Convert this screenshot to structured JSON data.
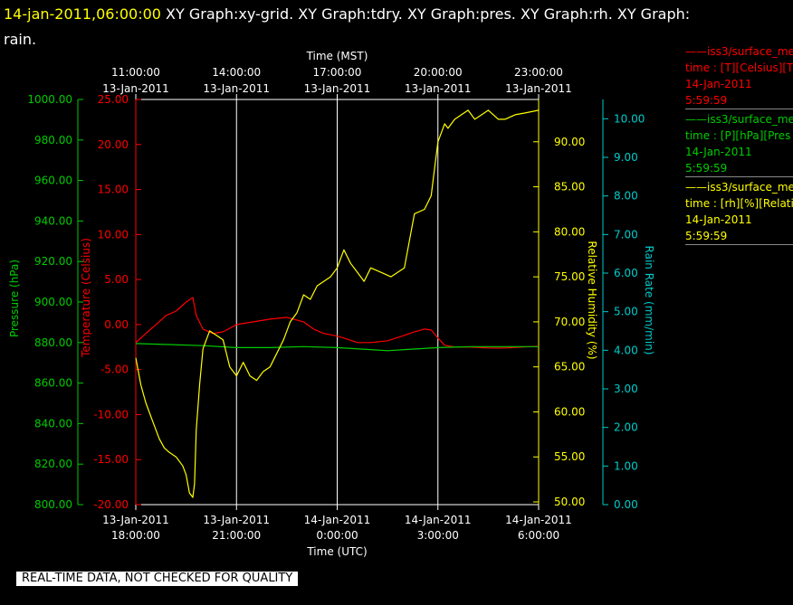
{
  "header": {
    "timestamp": "14-jan-2011,06:00:00",
    "title_rest": " XY Graph:xy-grid.  XY Graph:tdry.  XY Graph:pres.  XY Graph:rh.  XY Graph:",
    "title_wrap": "rain."
  },
  "colors": {
    "temperature": "#ff0000",
    "pressure": "#00cc00",
    "humidity": "#ffff00",
    "rain": "#00cccc",
    "grid": "#ffffff",
    "background": "#000000"
  },
  "legend": [
    {
      "line1": "——iss3/surface_me",
      "line2": "time : [T][Celsius][T",
      "line3": "14-Jan-2011",
      "line4": "5:59:59",
      "color": "#ff0000"
    },
    {
      "line1": "——iss3/surface_me",
      "line2": "time : [P][hPa][Pres",
      "line3": "14-Jan-2011",
      "line4": "5:59:59",
      "color": "#00cc00"
    },
    {
      "line1": "——iss3/surface_me",
      "line2": "time : [rh][%][Relati",
      "line3": "14-Jan-2011",
      "line4": "5:59:59",
      "color": "#ffff00"
    }
  ],
  "banner": "REAL-TIME DATA, NOT CHECKED FOR QUALITY",
  "chart_data": {
    "type": "line",
    "x_unit": "hours since 13-Jan-2011 18:00 UTC",
    "xlim": [
      0,
      12
    ],
    "top_axis": {
      "label": "Time (MST)",
      "ticks": [
        {
          "x": 0,
          "l1": "11:00:00",
          "l2": "13-Jan-2011"
        },
        {
          "x": 3,
          "l1": "14:00:00",
          "l2": "13-Jan-2011"
        },
        {
          "x": 6,
          "l1": "17:00:00",
          "l2": "13-Jan-2011"
        },
        {
          "x": 9,
          "l1": "20:00:00",
          "l2": "13-Jan-2011"
        },
        {
          "x": 12,
          "l1": "23:00:00",
          "l2": "13-Jan-2011"
        }
      ]
    },
    "bottom_axis": {
      "label": "Time (UTC)",
      "ticks": [
        {
          "x": 0,
          "l1": "13-Jan-2011",
          "l2": "18:00:00"
        },
        {
          "x": 3,
          "l1": "13-Jan-2011",
          "l2": "21:00:00"
        },
        {
          "x": 6,
          "l1": "14-Jan-2011",
          "l2": "0:00:00"
        },
        {
          "x": 9,
          "l1": "14-Jan-2011",
          "l2": "3:00:00"
        },
        {
          "x": 12,
          "l1": "14-Jan-2011",
          "l2": "6:00:00"
        }
      ]
    },
    "grid_x": [
      3,
      6,
      9
    ],
    "y_axes": {
      "pressure": {
        "label": "Pressure (hPa)",
        "ylim": [
          800,
          1000
        ],
        "ticks": [
          "800.00",
          "820.00",
          "840.00",
          "860.00",
          "880.00",
          "900.00",
          "920.00",
          "940.00",
          "960.00",
          "980.00",
          "1000.00"
        ],
        "tick_values": [
          800,
          820,
          840,
          860,
          880,
          900,
          920,
          940,
          960,
          980,
          1000
        ]
      },
      "temperature": {
        "label": "Temperature (Celsius)",
        "ylim": [
          -20,
          25
        ],
        "ticks": [
          "-20.00",
          "-15.00",
          "-10.00",
          "-5.00",
          "0.00",
          "5.00",
          "10.00",
          "15.00",
          "20.00",
          "25.00"
        ],
        "tick_values": [
          -20,
          -15,
          -10,
          -5,
          0,
          5,
          10,
          15,
          20,
          25
        ]
      },
      "humidity": {
        "label": "Relative Humidity (%)",
        "ylim": [
          49.7,
          94.7
        ],
        "ticks": [
          "50.00",
          "55.00",
          "60.00",
          "65.00",
          "70.00",
          "75.00",
          "80.00",
          "85.00",
          "90.00"
        ],
        "tick_values": [
          50,
          55,
          60,
          65,
          70,
          75,
          80,
          85,
          90
        ]
      },
      "rain": {
        "label": "Rain Rate (mm/min)",
        "ylim": [
          0,
          10.5
        ],
        "ticks": [
          "0.00",
          "1.00",
          "2.00",
          "3.00",
          "4.00",
          "5.00",
          "6.00",
          "7.00",
          "8.00",
          "9.00",
          "10.00"
        ],
        "tick_values": [
          0,
          1,
          2,
          3,
          4,
          5,
          6,
          7,
          8,
          9,
          10
        ]
      }
    },
    "series": [
      {
        "name": "iss3/surface_me time : [T][Celsius][T",
        "axis": "temperature",
        "x": [
          0,
          0.3,
          0.6,
          0.9,
          1.2,
          1.5,
          1.7,
          1.8,
          2.0,
          2.3,
          2.6,
          3.0,
          3.5,
          4.0,
          4.5,
          5.0,
          5.3,
          5.6,
          5.9,
          6.2,
          6.6,
          7.0,
          7.5,
          8.0,
          8.3,
          8.6,
          8.8,
          9.0,
          9.2,
          9.5,
          10.0,
          10.5,
          11.0,
          11.5,
          12.0
        ],
        "values": [
          -2.0,
          -1.0,
          0.0,
          1.0,
          1.5,
          2.5,
          3.0,
          1.0,
          -0.5,
          -1.0,
          -0.8,
          0.0,
          0.3,
          0.6,
          0.8,
          0.3,
          -0.5,
          -1.0,
          -1.2,
          -1.5,
          -2.0,
          -2.0,
          -1.8,
          -1.2,
          -0.8,
          -0.5,
          -0.6,
          -1.5,
          -2.3,
          -2.5,
          -2.5,
          -2.6,
          -2.6,
          -2.5,
          -2.4
        ]
      },
      {
        "name": "iss3/surface_me time : [P][hPa][Pres",
        "axis": "pressure",
        "x": [
          0,
          1,
          2,
          3,
          4,
          5,
          6,
          7,
          7.5,
          8,
          9,
          10,
          11,
          12
        ],
        "values": [
          879.5,
          879,
          878.5,
          877.5,
          877.5,
          878,
          877.5,
          876.5,
          876,
          876.5,
          877.5,
          878,
          878,
          878
        ]
      },
      {
        "name": "iss3/surface_me time : [rh][%][Relati",
        "axis": "humidity",
        "x": [
          0,
          0.15,
          0.3,
          0.5,
          0.7,
          0.85,
          1.0,
          1.2,
          1.4,
          1.5,
          1.6,
          1.7,
          1.75,
          1.8,
          1.9,
          2.0,
          2.1,
          2.2,
          2.4,
          2.6,
          2.8,
          3.0,
          3.2,
          3.4,
          3.6,
          3.8,
          4.0,
          4.2,
          4.4,
          4.6,
          4.8,
          5.0,
          5.2,
          5.4,
          5.6,
          5.8,
          6.0,
          6.1,
          6.2,
          6.4,
          6.6,
          6.8,
          7.0,
          7.3,
          7.6,
          8.0,
          8.3,
          8.6,
          8.8,
          8.9,
          9.0,
          9.1,
          9.2,
          9.3,
          9.5,
          9.7,
          9.9,
          10.1,
          10.3,
          10.5,
          10.8,
          11.0,
          11.3,
          11.6,
          12.0
        ],
        "values": [
          66,
          63,
          61,
          59,
          57,
          56,
          55.5,
          55,
          54,
          53,
          51,
          50.5,
          52,
          58,
          63,
          67,
          68,
          69,
          68.5,
          68,
          65,
          64,
          65.5,
          64,
          63.5,
          64.5,
          65,
          66.5,
          68,
          70,
          71,
          73,
          72.5,
          74,
          74.5,
          75,
          76,
          77,
          78,
          76.5,
          75.5,
          74.5,
          76,
          75.5,
          75,
          76,
          82,
          82.5,
          84,
          87,
          90,
          91,
          92,
          91.5,
          92.5,
          93,
          93.5,
          92.5,
          93,
          93.5,
          92.5,
          92.5,
          93,
          93.2,
          93.5
        ]
      }
    ]
  }
}
